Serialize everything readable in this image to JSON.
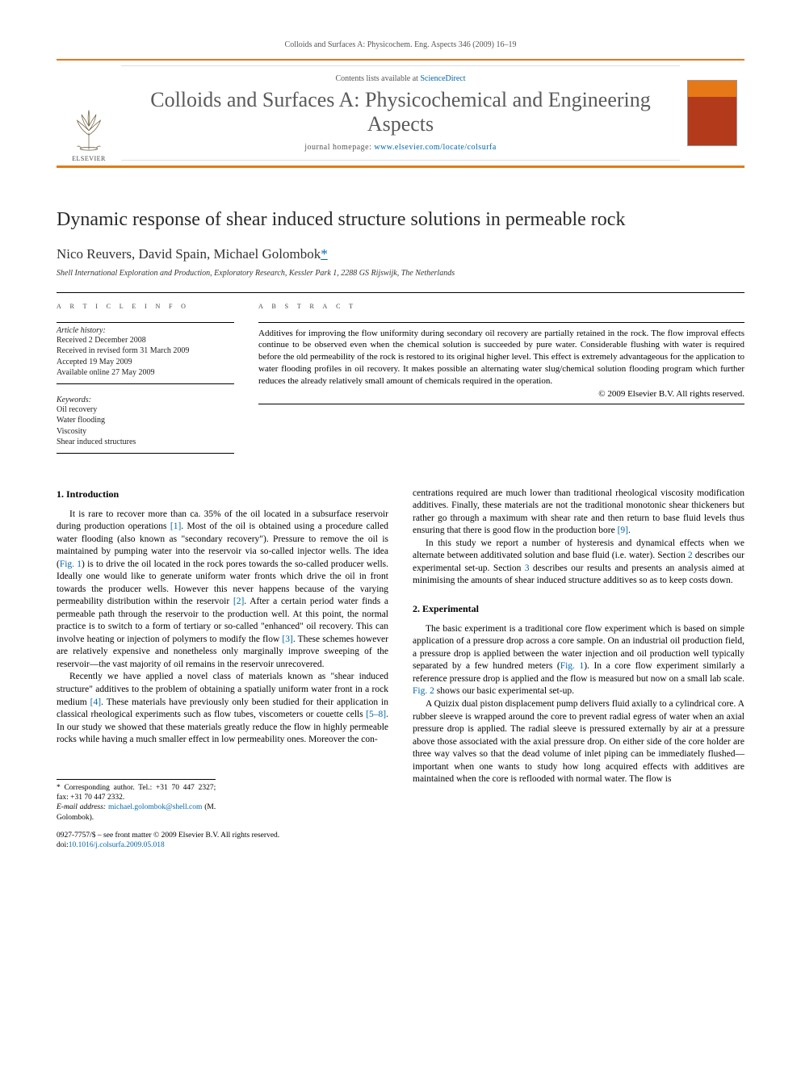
{
  "header": {
    "citation": "Colloids and Surfaces A: Physicochem. Eng. Aspects 346 (2009) 16–19",
    "contents_prefix": "Contents lists available at ",
    "contents_link": "ScienceDirect",
    "journal_name": "Colloids and Surfaces A: Physicochemical and Engineering Aspects",
    "homepage_prefix": "journal homepage: ",
    "homepage_url": "www.elsevier.com/locate/colsurfa",
    "publisher_label": "ELSEVIER"
  },
  "colors": {
    "accent": "#e67817",
    "link": "#0066aa",
    "text": "#000000",
    "heading_gray": "#5a5a5a"
  },
  "article": {
    "title": "Dynamic response of shear induced structure solutions in permeable rock",
    "authors_line": "Nico Reuvers, David Spain, Michael Golombok",
    "corr_mark": "*",
    "affiliation": "Shell International Exploration and Production, Exploratory Research, Kessler Park 1, 2288 GS Rijswijk, The Netherlands"
  },
  "info": {
    "heading": "A R T I C L E   I N F O",
    "history_label": "Article history:",
    "history": [
      "Received 2 December 2008",
      "Received in revised form 31 March 2009",
      "Accepted 19 May 2009",
      "Available online 27 May 2009"
    ],
    "keywords_label": "Keywords:",
    "keywords": [
      "Oil recovery",
      "Water flooding",
      "Viscosity",
      "Shear induced structures"
    ]
  },
  "abstract": {
    "heading": "A B S T R A C T",
    "text": "Additives for improving the flow uniformity during secondary oil recovery are partially retained in the rock. The flow improval effects continue to be observed even when the chemical solution is succeeded by pure water. Considerable flushing with water is required before the old permeability of the rock is restored to its original higher level. This effect is extremely advantageous for the application to water flooding profiles in oil recovery. It makes possible an alternating water slug/chemical solution flooding program which further reduces the already relatively small amount of chemicals required in the operation.",
    "copyright": "© 2009 Elsevier B.V. All rights reserved."
  },
  "sections": {
    "s1_heading": "1.  Introduction",
    "s1_p1": "It is rare to recover more than ca. 35% of the oil located in a subsurface reservoir during production operations [1]. Most of the oil is obtained using a procedure called water flooding (also known as \"secondary recovery\"). Pressure to remove the oil is maintained by pumping water into the reservoir via so-called injector wells. The idea (Fig. 1) is to drive the oil located in the rock pores towards the so-called producer wells. Ideally one would like to generate uniform water fronts which drive the oil in front towards the producer wells. However this never happens because of the varying permeability distribution within the reservoir [2]. After a certain period water finds a permeable path through the reservoir to the production well. At this point, the normal practice is to switch to a form of tertiary or so-called \"enhanced\" oil recovery. This can involve heating or injection of polymers to modify the flow [3]. These schemes however are relatively expensive and nonetheless only marginally improve sweeping of the reservoir—the vast majority of oil remains in the reservoir unrecovered.",
    "s1_p2": "Recently we have applied a novel class of materials known as \"shear induced structure\" additives to the problem of obtaining a spatially uniform water front in a rock medium [4]. These materials have previously only been studied for their application in classical rheological experiments such as flow tubes, viscometers or couette cells [5–8]. In our study we showed that these materials greatly reduce the flow in highly permeable rocks while having a much smaller effect in low permeability ones. Moreover the con-",
    "s1_p3": "centrations required are much lower than traditional rheological viscosity modification additives. Finally, these materials are not the traditional monotonic shear thickeners but rather go through a maximum with shear rate and then return to base fluid levels thus ensuring that there is good flow in the production bore [9].",
    "s1_p4": "In this study we report a number of hysteresis and dynamical effects when we alternate between additivated solution and base fluid (i.e. water). Section 2 describes our experimental set-up. Section 3 describes our results and presents an analysis aimed at minimising the amounts of shear induced structure additives so as to keep costs down.",
    "s2_heading": "2.  Experimental",
    "s2_p1": "The basic experiment is a traditional core flow experiment which is based on simple application of a pressure drop across a core sample. On an industrial oil production field, a pressure drop is applied between the water injection and oil production well typically separated by a few hundred meters (Fig. 1). In a core flow experiment similarly a reference pressure drop is applied and the flow is measured but now on a small lab scale. Fig. 2 shows our basic experimental set-up.",
    "s2_p2": "A Quizix dual piston displacement pump delivers fluid axially to a cylindrical core. A rubber sleeve is wrapped around the core to prevent radial egress of water when an axial pressure drop is applied. The radial sleeve is pressured externally by air at a pressure above those associated with the axial pressure drop. On either side of the core holder are three way valves so that the dead volume of inlet piping can be immediately flushed—important when one wants to study how long acquired effects with additives are maintained when the core is reflooded with normal water. The flow is"
  },
  "footnotes": {
    "corr": "* Corresponding author. Tel.: +31 70 447 2327; fax: +31 70 447 2332.",
    "email_label": "E-mail address: ",
    "email": "michael.golombok@shell.com",
    "email_author": " (M. Golombok)."
  },
  "footer": {
    "issn_line": "0927-7757/$ – see front matter © 2009 Elsevier B.V. All rights reserved.",
    "doi_label": "doi:",
    "doi": "10.1016/j.colsurfa.2009.05.018"
  }
}
